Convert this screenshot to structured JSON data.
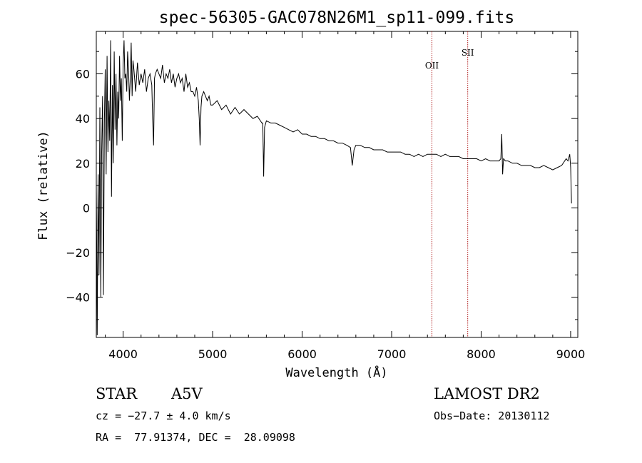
{
  "chart_data": {
    "type": "line",
    "title": "spec-56305-GAC078N26M1_sp11-099.fits",
    "xlabel": "Wavelength (Å)",
    "ylabel": "Flux (relative)",
    "xlim": [
      3700,
      9080
    ],
    "ylim": [
      -58,
      79
    ],
    "x_ticks": [
      "4000",
      "5000",
      "6000",
      "7000",
      "8000",
      "9000"
    ],
    "y_ticks": [
      "60",
      "40",
      "20",
      "0",
      "−20",
      "−40"
    ],
    "x_tick_values": [
      4000,
      5000,
      6000,
      7000,
      8000,
      9000
    ],
    "y_tick_values": [
      60,
      40,
      20,
      0,
      -20,
      -40
    ],
    "grid": false,
    "line_color": "#000000",
    "marker_color": "#b22222",
    "lines": [
      {
        "label": "OII",
        "x": 7450
      },
      {
        "label": "SII",
        "x": 7850
      }
    ],
    "series": [
      {
        "x": [
          3700,
          3710,
          3720,
          3730,
          3740,
          3750,
          3760,
          3770,
          3780,
          3790,
          3800,
          3810,
          3820,
          3830,
          3840,
          3850,
          3860,
          3870,
          3880,
          3890,
          3900,
          3910,
          3920,
          3930,
          3940,
          3950,
          3960,
          3970,
          3980,
          3990,
          4000,
          4010,
          4020,
          4030,
          4040,
          4050,
          4060,
          4070,
          4080,
          4090,
          4100,
          4110,
          4120,
          4140,
          4160,
          4180,
          4200,
          4220,
          4240,
          4260,
          4280,
          4300,
          4320,
          4330,
          4340,
          4350,
          4360,
          4380,
          4400,
          4420,
          4440,
          4460,
          4480,
          4500,
          4520,
          4540,
          4560,
          4580,
          4600,
          4620,
          4640,
          4660,
          4680,
          4700,
          4720,
          4740,
          4760,
          4780,
          4800,
          4820,
          4840,
          4850,
          4860,
          4870,
          4880,
          4900,
          4920,
          4940,
          4960,
          4980,
          5000,
          5050,
          5100,
          5150,
          5200,
          5250,
          5300,
          5350,
          5400,
          5450,
          5500,
          5550,
          5560,
          5570,
          5580,
          5600,
          5650,
          5700,
          5750,
          5800,
          5850,
          5900,
          5950,
          6000,
          6050,
          6100,
          6150,
          6200,
          6250,
          6300,
          6350,
          6400,
          6450,
          6500,
          6540,
          6560,
          6580,
          6600,
          6650,
          6700,
          6750,
          6800,
          6850,
          6900,
          6950,
          7000,
          7050,
          7100,
          7150,
          7200,
          7250,
          7300,
          7350,
          7400,
          7450,
          7500,
          7550,
          7600,
          7650,
          7700,
          7750,
          7800,
          7850,
          7900,
          7950,
          8000,
          8050,
          8100,
          8150,
          8200,
          8220,
          8230,
          8240,
          8250,
          8270,
          8300,
          8350,
          8400,
          8450,
          8500,
          8550,
          8600,
          8650,
          8700,
          8750,
          8800,
          8850,
          8900,
          8950,
          8970,
          8990,
          9000,
          9010
        ],
        "y": [
          10,
          -57,
          15,
          -30,
          45,
          -40,
          25,
          50,
          -39,
          38,
          62,
          15,
          68,
          25,
          48,
          30,
          75,
          5,
          55,
          20,
          70,
          35,
          60,
          28,
          52,
          40,
          68,
          48,
          58,
          30,
          64,
          75,
          58,
          60,
          52,
          70,
          62,
          48,
          58,
          74,
          50,
          66,
          62,
          52,
          65,
          55,
          60,
          56,
          62,
          52,
          58,
          60,
          55,
          40,
          28,
          58,
          60,
          62,
          60,
          58,
          64,
          56,
          60,
          58,
          62,
          56,
          60,
          54,
          58,
          60,
          56,
          58,
          52,
          60,
          54,
          56,
          52,
          52,
          50,
          54,
          48,
          40,
          28,
          45,
          50,
          52,
          50,
          48,
          50,
          46,
          46,
          48,
          44,
          46,
          42,
          45,
          42,
          44,
          42,
          40,
          41,
          38,
          38,
          14,
          36,
          39,
          38,
          38,
          37,
          36,
          35,
          34,
          35,
          33,
          33,
          32,
          32,
          31,
          31,
          30,
          30,
          29,
          29,
          28,
          27,
          19,
          26,
          28,
          28,
          27,
          27,
          26,
          26,
          26,
          25,
          25,
          25,
          25,
          24,
          24,
          23,
          24,
          23,
          24,
          24,
          24,
          23,
          24,
          23,
          23,
          23,
          22,
          22,
          22,
          22,
          21,
          22,
          21,
          21,
          21,
          22,
          33,
          15,
          22,
          21,
          21,
          20,
          20,
          19,
          19,
          19,
          18,
          18,
          19,
          18,
          17,
          18,
          19,
          22,
          21,
          24,
          18,
          2
        ]
      }
    ]
  },
  "footer": {
    "object_class": "STAR",
    "subclass": "A5V",
    "survey": "LAMOST DR2",
    "cz": "cz = −27.7 ± 4.0 km/s",
    "obs_date": "Obs−Date: 20130112",
    "coords": "RA =  77.91374, DEC =  28.09098"
  }
}
